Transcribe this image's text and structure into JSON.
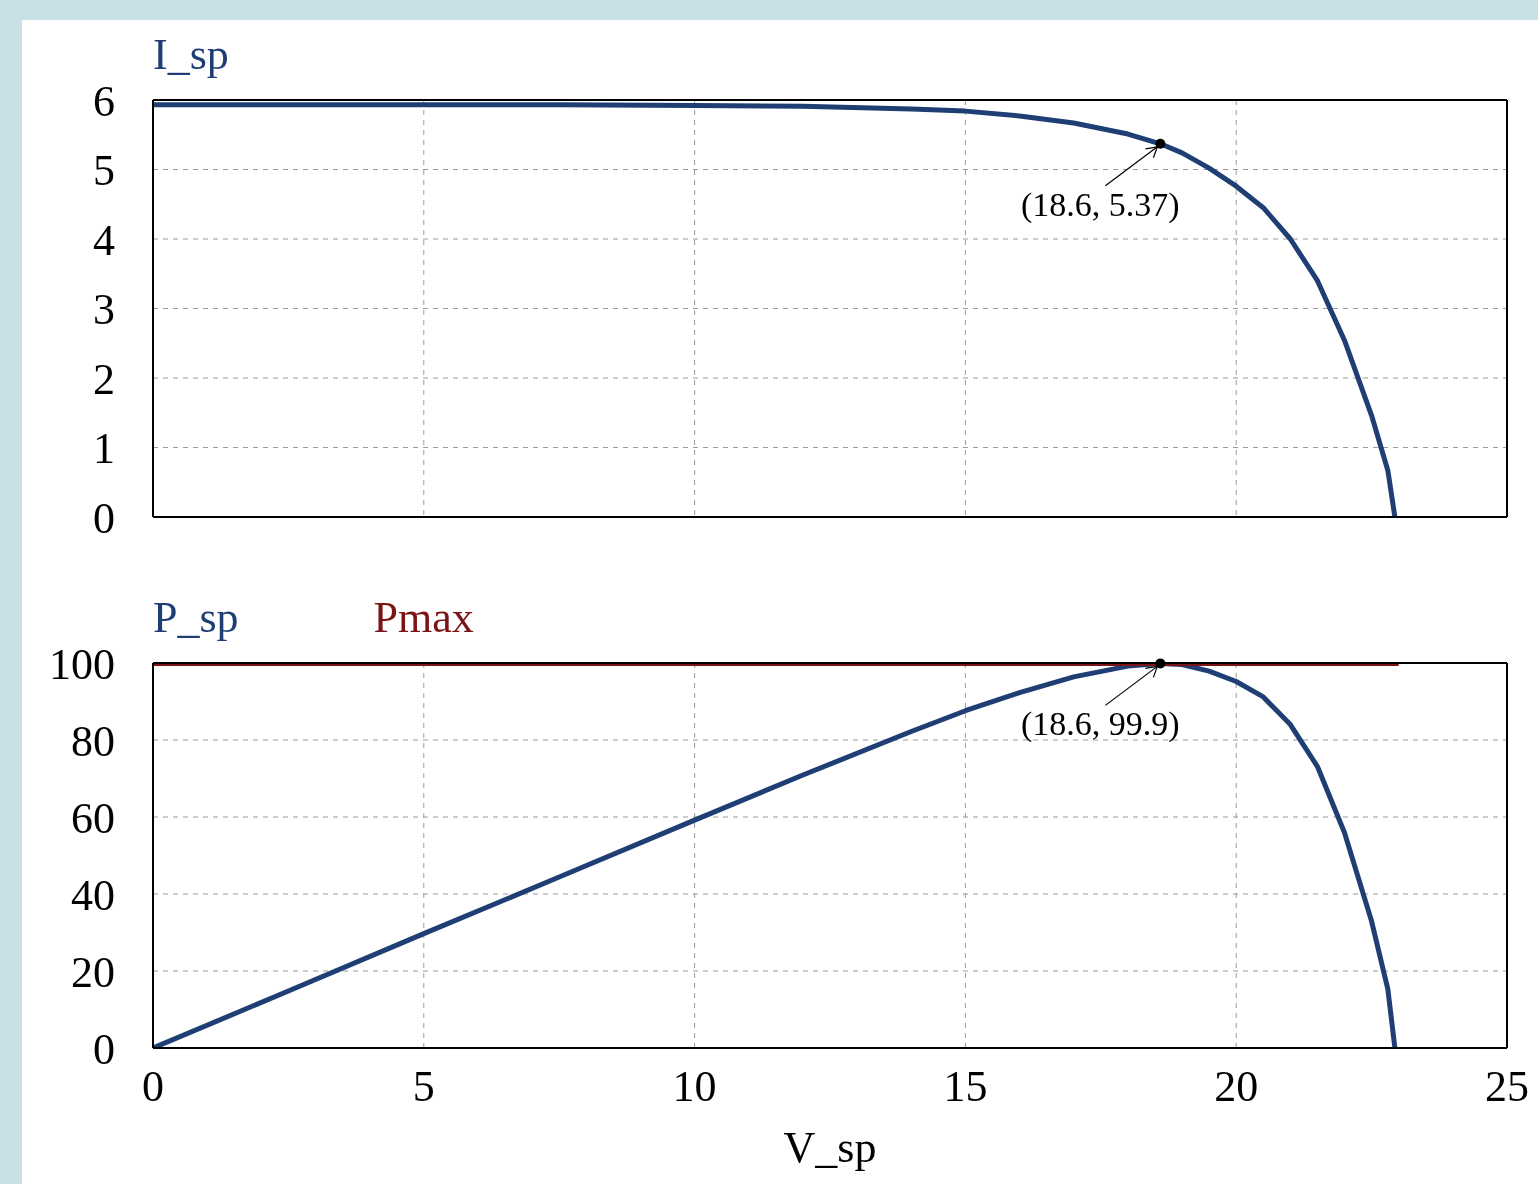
{
  "chart_data": [
    {
      "type": "line",
      "x": [
        0,
        2.5,
        5,
        7.5,
        10,
        12,
        14,
        15,
        16,
        17,
        18,
        18.6,
        19,
        19.5,
        20,
        20.5,
        21,
        21.5,
        22,
        22.5,
        22.8,
        22.93
      ],
      "series": [
        {
          "name": "I_sp",
          "color": "#1f3f74",
          "values": [
            5.93,
            5.93,
            5.93,
            5.93,
            5.92,
            5.91,
            5.87,
            5.84,
            5.77,
            5.67,
            5.51,
            5.37,
            5.24,
            5.02,
            4.76,
            4.45,
            4.0,
            3.4,
            2.54,
            1.46,
            0.67,
            0
          ]
        }
      ],
      "xlim": [
        0,
        25
      ],
      "xticks": [
        0,
        5,
        10,
        15,
        20,
        25
      ],
      "ylim": [
        0,
        6
      ],
      "yticks": [
        0,
        1,
        2,
        3,
        4,
        5,
        6
      ],
      "grid": true,
      "legend": "top left",
      "tick_labels": "y",
      "marker": "none",
      "line_style": "solid",
      "annotations": [
        {
          "text": "(18.6, 5.37)",
          "x": 18.6,
          "y": 5.37
        }
      ]
    },
    {
      "type": "line",
      "x": [
        0,
        2.5,
        5,
        7.5,
        10,
        12,
        14,
        15,
        16,
        17,
        18,
        18.6,
        19,
        19.5,
        20,
        20.5,
        21,
        21.5,
        22,
        22.5,
        22.8,
        22.93
      ],
      "series": [
        {
          "name": "P_sp",
          "color": "#1f3f74",
          "values": [
            0,
            14.8,
            29.7,
            44.4,
            59.2,
            70.9,
            82.2,
            87.6,
            92.3,
            96.4,
            99.2,
            99.9,
            99.6,
            97.9,
            95.2,
            91.2,
            84,
            73.1,
            55.9,
            32.9,
            15.3,
            0
          ]
        },
        {
          "name": "Pmax",
          "color": "#7b1416",
          "x": [
            0,
            23
          ],
          "values": [
            99.9,
            99.9
          ]
        }
      ],
      "xlim": [
        0,
        25
      ],
      "xticks": [
        0,
        5,
        10,
        15,
        20,
        25
      ],
      "ylim": [
        0,
        100
      ],
      "yticks": [
        0,
        20,
        40,
        60,
        80,
        100
      ],
      "xlabel": "V_sp",
      "grid": true,
      "legend": "top left",
      "marker": "none",
      "line_style": "solid",
      "annotations": [
        {
          "text": "(18.6, 99.9)",
          "x": 18.6,
          "y": 99.9
        }
      ]
    }
  ]
}
